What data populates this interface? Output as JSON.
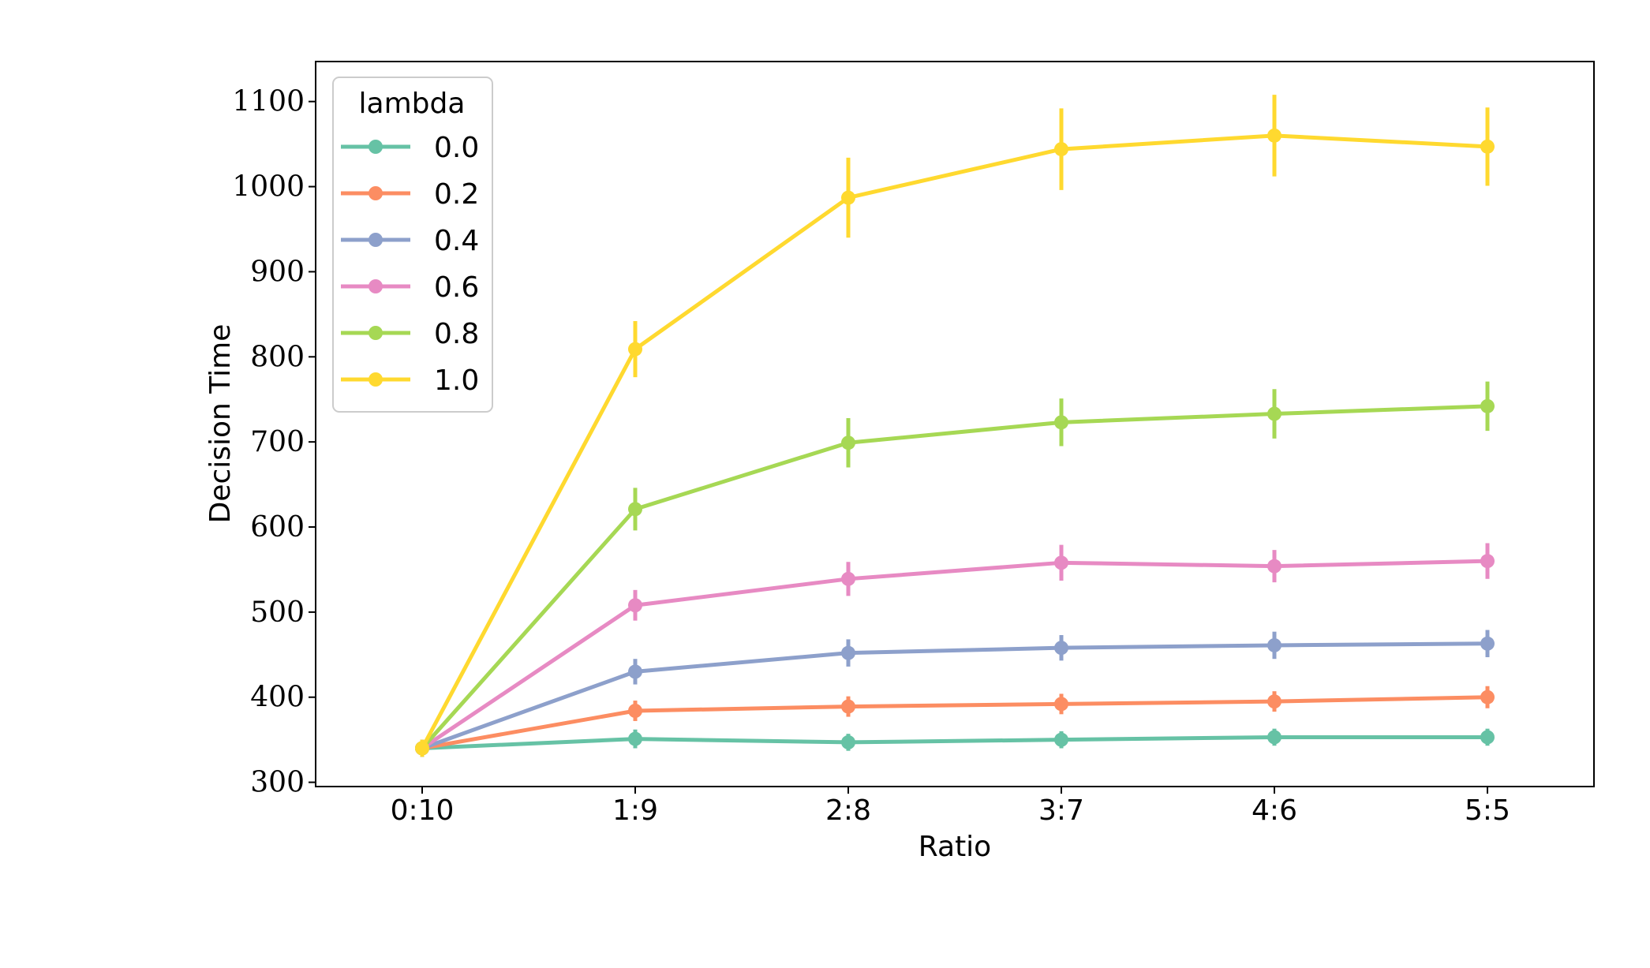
{
  "chart_data": {
    "type": "line",
    "title": "",
    "xlabel": "Ratio",
    "ylabel": "Decision Time",
    "categories": [
      "0:10",
      "1:9",
      "2:8",
      "3:7",
      "4:6",
      "5:5"
    ],
    "yticks": [
      "300",
      "400",
      "500",
      "600",
      "700",
      "800",
      "900",
      "1000",
      "1100"
    ],
    "ylim": [
      295,
      1147
    ],
    "grid": false,
    "legend": {
      "title": "lambda",
      "placement": "top-left"
    },
    "series": [
      {
        "name": "0.0",
        "color": "#66c2a5",
        "values": [
          340,
          351,
          347,
          350,
          353,
          353
        ],
        "err": [
          10,
          11,
          10,
          10,
          10,
          10
        ]
      },
      {
        "name": "0.2",
        "color": "#fc8d62",
        "values": [
          340,
          384,
          389,
          392,
          395,
          400
        ],
        "err": [
          10,
          12,
          12,
          12,
          12,
          13
        ]
      },
      {
        "name": "0.4",
        "color": "#8da0cb",
        "values": [
          340,
          430,
          452,
          458,
          461,
          463
        ],
        "err": [
          10,
          15,
          16,
          15,
          16,
          16
        ]
      },
      {
        "name": "0.6",
        "color": "#e78ac3",
        "values": [
          340,
          508,
          539,
          558,
          554,
          560
        ],
        "err": [
          10,
          18,
          20,
          21,
          19,
          21
        ]
      },
      {
        "name": "0.8",
        "color": "#a6d854",
        "values": [
          340,
          621,
          699,
          723,
          733,
          742
        ],
        "err": [
          10,
          25,
          29,
          28,
          29,
          29
        ]
      },
      {
        "name": "1.0",
        "color": "#ffd92f",
        "values": [
          340,
          809,
          987,
          1044,
          1060,
          1047
        ],
        "err": [
          10,
          33,
          47,
          48,
          48,
          46
        ]
      }
    ]
  }
}
